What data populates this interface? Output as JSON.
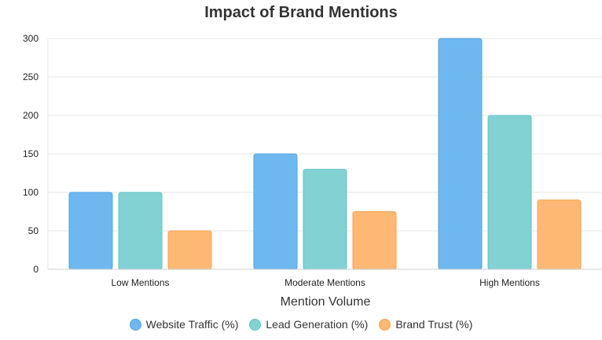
{
  "chart_data": {
    "type": "bar",
    "title": "Impact of Brand Mentions",
    "xlabel": "Mention Volume",
    "ylabel": "",
    "categories": [
      "Low Mentions",
      "Moderate Mentions",
      "High Mentions"
    ],
    "series": [
      {
        "name": "Website Traffic (%)",
        "values": [
          100,
          150,
          300
        ],
        "color": "#6FB8EF",
        "stroke": "#4EA3E4"
      },
      {
        "name": "Lead Generation (%)",
        "values": [
          100,
          130,
          200
        ],
        "color": "#82D2D3",
        "stroke": "#61C3C4"
      },
      {
        "name": "Brand Trust (%)",
        "values": [
          50,
          75,
          90
        ],
        "color": "#FDB974",
        "stroke": "#F5A24F"
      }
    ],
    "ylim": [
      0,
      300
    ],
    "yticks": [
      "0",
      "50",
      "100",
      "150",
      "200",
      "250",
      "300"
    ],
    "grid": true,
    "legend_position": "bottom"
  }
}
